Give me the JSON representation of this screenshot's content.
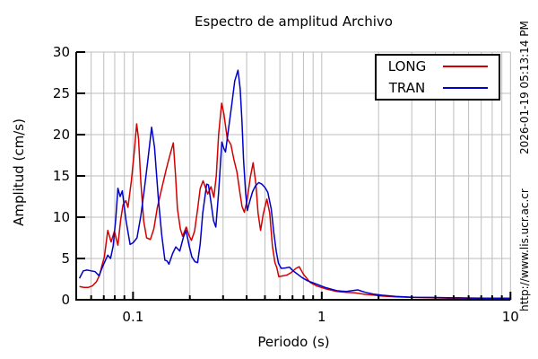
{
  "title": "Espectro de amplitud Archivo",
  "side_text_top": "2026-01-19 05:13:14 PM",
  "side_text_bottom": "http://www.lis.ucr.ac.cr",
  "chart_data": {
    "type": "line",
    "title": "Espectro de amplitud Archivo",
    "xlabel": "Periodo (s)",
    "ylabel": "Amplitud (cm/s)",
    "x_scale": "log",
    "xlim": [
      0.05,
      10
    ],
    "ylim": [
      0,
      30
    ],
    "x_major_ticks": [
      0.1,
      1,
      10
    ],
    "x_major_tick_labels": [
      "0.1",
      "1",
      "10"
    ],
    "y_ticks": [
      0,
      5,
      10,
      15,
      20,
      25,
      30
    ],
    "grid": true,
    "grid_color": "#bdbdbd",
    "axis_color": "#000000",
    "legend_position": "top-right",
    "legend_entries": [
      "LONG",
      "TRAN"
    ],
    "series": [
      {
        "name": "LONG",
        "color": "#d40000",
        "points": [
          [
            0.052,
            1.6
          ],
          [
            0.055,
            1.5
          ],
          [
            0.058,
            1.5
          ],
          [
            0.061,
            1.7
          ],
          [
            0.064,
            2.2
          ],
          [
            0.0665,
            3.0
          ],
          [
            0.0685,
            4.2
          ],
          [
            0.0705,
            5.2
          ],
          [
            0.0735,
            8.4
          ],
          [
            0.0765,
            7.0
          ],
          [
            0.0797,
            8.3
          ],
          [
            0.0832,
            6.6
          ],
          [
            0.086,
            9.7
          ],
          [
            0.0885,
            11.5
          ],
          [
            0.0917,
            12.0
          ],
          [
            0.094,
            11.2
          ],
          [
            0.098,
            14.4
          ],
          [
            0.1015,
            17.9
          ],
          [
            0.1045,
            21.3
          ],
          [
            0.107,
            19.5
          ],
          [
            0.11,
            14.2
          ],
          [
            0.114,
            9.5
          ],
          [
            0.118,
            7.5
          ],
          [
            0.1235,
            7.3
          ],
          [
            0.129,
            8.6
          ],
          [
            0.1345,
            11.2
          ],
          [
            0.142,
            13.5
          ],
          [
            0.15,
            15.8
          ],
          [
            0.158,
            17.8
          ],
          [
            0.1635,
            19.0
          ],
          [
            0.168,
            15.0
          ],
          [
            0.172,
            11.0
          ],
          [
            0.178,
            8.6
          ],
          [
            0.183,
            7.7
          ],
          [
            0.1915,
            8.8
          ],
          [
            0.198,
            7.8
          ],
          [
            0.204,
            7.2
          ],
          [
            0.212,
            8.3
          ],
          [
            0.22,
            11.0
          ],
          [
            0.227,
            13.5
          ],
          [
            0.235,
            14.4
          ],
          [
            0.249,
            12.8
          ],
          [
            0.259,
            13.7
          ],
          [
            0.268,
            12.4
          ],
          [
            0.276,
            15.0
          ],
          [
            0.284,
            20.0
          ],
          [
            0.295,
            23.8
          ],
          [
            0.303,
            22.5
          ],
          [
            0.316,
            19.5
          ],
          [
            0.33,
            18.8
          ],
          [
            0.342,
            17.0
          ],
          [
            0.355,
            15.5
          ],
          [
            0.368,
            13.0
          ],
          [
            0.378,
            11.3
          ],
          [
            0.389,
            10.6
          ],
          [
            0.402,
            12.0
          ],
          [
            0.418,
            14.8
          ],
          [
            0.433,
            16.6
          ],
          [
            0.448,
            14.0
          ],
          [
            0.46,
            10.5
          ],
          [
            0.474,
            8.4
          ],
          [
            0.49,
            10.4
          ],
          [
            0.512,
            12.2
          ],
          [
            0.53,
            10.5
          ],
          [
            0.548,
            6.5
          ],
          [
            0.565,
            4.5
          ],
          [
            0.578,
            3.9
          ],
          [
            0.592,
            2.8
          ],
          [
            0.625,
            2.9
          ],
          [
            0.655,
            3.0
          ],
          [
            0.69,
            3.3
          ],
          [
            0.73,
            3.8
          ],
          [
            0.76,
            4.0
          ],
          [
            0.8,
            3.1
          ],
          [
            0.868,
            2.1
          ],
          [
            0.935,
            1.7
          ],
          [
            1.04,
            1.35
          ],
          [
            1.2,
            1.0
          ],
          [
            1.35,
            0.9
          ],
          [
            1.5,
            0.85
          ],
          [
            1.7,
            0.65
          ],
          [
            1.9,
            0.55
          ],
          [
            2.08,
            0.45
          ],
          [
            2.46,
            0.35
          ],
          [
            3.06,
            0.28
          ],
          [
            3.8,
            0.25
          ],
          [
            4.7,
            0.2
          ],
          [
            5.9,
            0.17
          ],
          [
            7.3,
            0.15
          ],
          [
            10.0,
            0.15
          ]
        ]
      },
      {
        "name": "TRAN",
        "color": "#0000c8",
        "points": [
          [
            0.052,
            2.6
          ],
          [
            0.0545,
            3.5
          ],
          [
            0.057,
            3.6
          ],
          [
            0.06,
            3.5
          ],
          [
            0.063,
            3.4
          ],
          [
            0.066,
            2.9
          ],
          [
            0.069,
            4.0
          ],
          [
            0.0715,
            4.8
          ],
          [
            0.0735,
            5.4
          ],
          [
            0.076,
            5.0
          ],
          [
            0.0785,
            6.5
          ],
          [
            0.081,
            9.8
          ],
          [
            0.0832,
            13.5
          ],
          [
            0.0855,
            12.5
          ],
          [
            0.0877,
            13.2
          ],
          [
            0.0917,
            9.7
          ],
          [
            0.0965,
            6.7
          ],
          [
            0.1,
            6.9
          ],
          [
            0.105,
            7.5
          ],
          [
            0.11,
            10.2
          ],
          [
            0.115,
            13.5
          ],
          [
            0.12,
            17.0
          ],
          [
            0.1255,
            20.9
          ],
          [
            0.13,
            18.5
          ],
          [
            0.136,
            12.4
          ],
          [
            0.142,
            7.8
          ],
          [
            0.1475,
            4.8
          ],
          [
            0.1515,
            4.7
          ],
          [
            0.155,
            4.3
          ],
          [
            0.162,
            5.6
          ],
          [
            0.1685,
            6.4
          ],
          [
            0.177,
            5.9
          ],
          [
            0.185,
            7.6
          ],
          [
            0.191,
            8.4
          ],
          [
            0.198,
            6.6
          ],
          [
            0.205,
            5.2
          ],
          [
            0.213,
            4.6
          ],
          [
            0.22,
            4.5
          ],
          [
            0.227,
            6.8
          ],
          [
            0.234,
            10.5
          ],
          [
            0.2455,
            14.0
          ],
          [
            0.251,
            13.9
          ],
          [
            0.259,
            11.8
          ],
          [
            0.267,
            9.6
          ],
          [
            0.2745,
            8.8
          ],
          [
            0.284,
            13.0
          ],
          [
            0.2955,
            19.1
          ],
          [
            0.303,
            18.3
          ],
          [
            0.309,
            17.9
          ],
          [
            0.321,
            20.8
          ],
          [
            0.333,
            23.5
          ],
          [
            0.346,
            26.5
          ],
          [
            0.36,
            27.8
          ],
          [
            0.37,
            25.5
          ],
          [
            0.378,
            21.5
          ],
          [
            0.385,
            17.0
          ],
          [
            0.395,
            13.0
          ],
          [
            0.403,
            10.8
          ],
          [
            0.414,
            11.8
          ],
          [
            0.43,
            13.1
          ],
          [
            0.446,
            13.8
          ],
          [
            0.464,
            14.2
          ],
          [
            0.482,
            14.0
          ],
          [
            0.5,
            13.6
          ],
          [
            0.518,
            13.0
          ],
          [
            0.54,
            11.0
          ],
          [
            0.558,
            8.0
          ],
          [
            0.575,
            5.8
          ],
          [
            0.59,
            4.4
          ],
          [
            0.61,
            3.8
          ],
          [
            0.64,
            3.85
          ],
          [
            0.674,
            3.95
          ],
          [
            0.705,
            3.5
          ],
          [
            0.735,
            3.2
          ],
          [
            0.785,
            2.7
          ],
          [
            0.84,
            2.3
          ],
          [
            0.935,
            1.9
          ],
          [
            1.04,
            1.5
          ],
          [
            1.2,
            1.1
          ],
          [
            1.35,
            1.0
          ],
          [
            1.55,
            1.2
          ],
          [
            1.7,
            0.9
          ],
          [
            1.87,
            0.7
          ],
          [
            2.08,
            0.55
          ],
          [
            2.46,
            0.4
          ],
          [
            3.06,
            0.3
          ],
          [
            3.8,
            0.28
          ],
          [
            4.7,
            0.25
          ],
          [
            5.9,
            0.22
          ],
          [
            7.3,
            0.2
          ],
          [
            10.0,
            0.2
          ]
        ]
      }
    ]
  }
}
